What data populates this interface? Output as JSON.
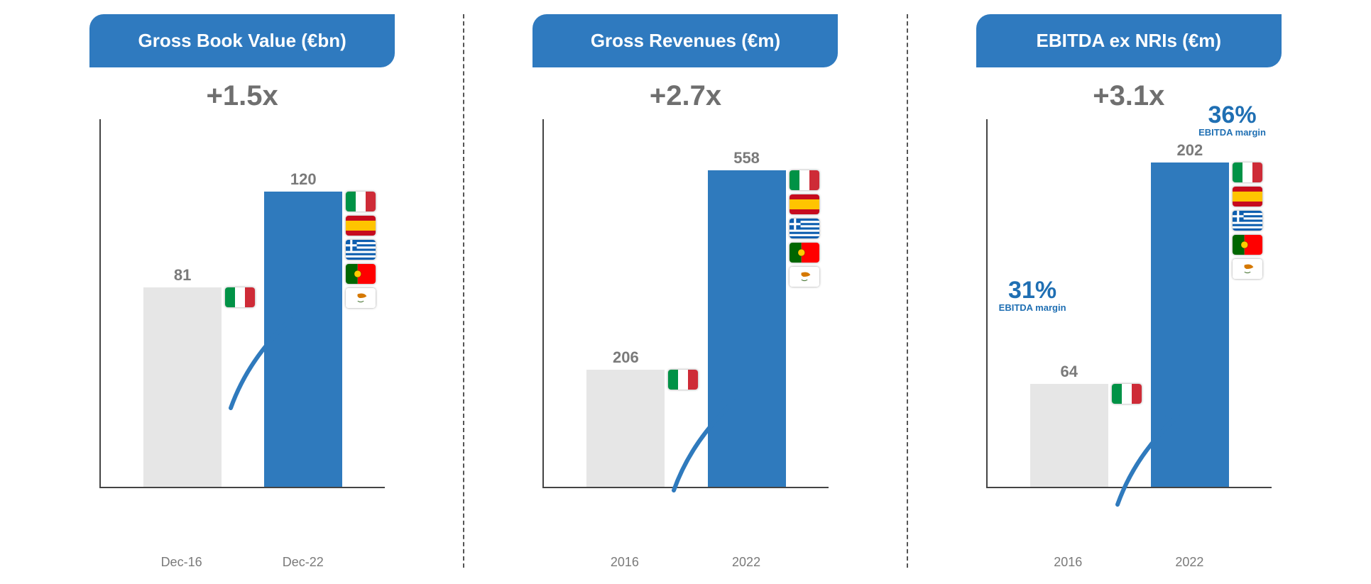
{
  "global": {
    "background_color": "#ffffff",
    "divider_color": "#555555",
    "label_text_color": "#7a7a7a",
    "pill_bg": "#2f7abf",
    "pill_fg": "#ffffff",
    "multiplier_color": "#6f6f6f",
    "bar_grey": "#e6e6e6",
    "bar_blue": "#2f7abd",
    "arrow_color": "#2f7abd",
    "callout_color": "#1f6fb3",
    "axis_color": "#444444"
  },
  "panels": [
    {
      "title": "Gross Book Value (€bn)",
      "multiplier": "+1.5x",
      "type": "bar",
      "chart_height_units": 150,
      "bars": [
        {
          "label": "Dec-16",
          "value": 81,
          "color": "grey",
          "flags": [
            "IT"
          ]
        },
        {
          "label": "Dec-22",
          "value": 120,
          "color": "blue",
          "flags": [
            "IT",
            "ES",
            "GR",
            "PT",
            "CY"
          ]
        }
      ]
    },
    {
      "title": "Gross Revenues (€m)",
      "multiplier": "+2.7x",
      "type": "bar",
      "chart_height_units": 650,
      "bars": [
        {
          "label": "2016",
          "value": 206,
          "color": "grey",
          "flags": [
            "IT"
          ]
        },
        {
          "label": "2022",
          "value": 558,
          "color": "blue",
          "flags": [
            "IT",
            "ES",
            "GR",
            "PT",
            "CY"
          ]
        }
      ]
    },
    {
      "title": "EBITDA ex NRIs (€m)",
      "multiplier": "+3.1x",
      "type": "bar",
      "chart_height_units": 230,
      "bars": [
        {
          "label": "2016",
          "value": 64,
          "color": "grey",
          "flags": [
            "IT"
          ]
        },
        {
          "label": "2022",
          "value": 202,
          "color": "blue",
          "flags": [
            "IT",
            "ES",
            "GR",
            "PT",
            "CY"
          ]
        }
      ],
      "callouts": [
        {
          "pct": "31%",
          "sub": "EBITDA margin",
          "for_bar": 0
        },
        {
          "pct": "36%",
          "sub": "EBITDA margin",
          "for_bar": 1
        }
      ]
    }
  ],
  "flag_defs": {
    "IT": {
      "name": "italy-flag"
    },
    "ES": {
      "name": "spain-flag"
    },
    "GR": {
      "name": "greece-flag"
    },
    "PT": {
      "name": "portugal-flag"
    },
    "CY": {
      "name": "cyprus-flag"
    }
  }
}
